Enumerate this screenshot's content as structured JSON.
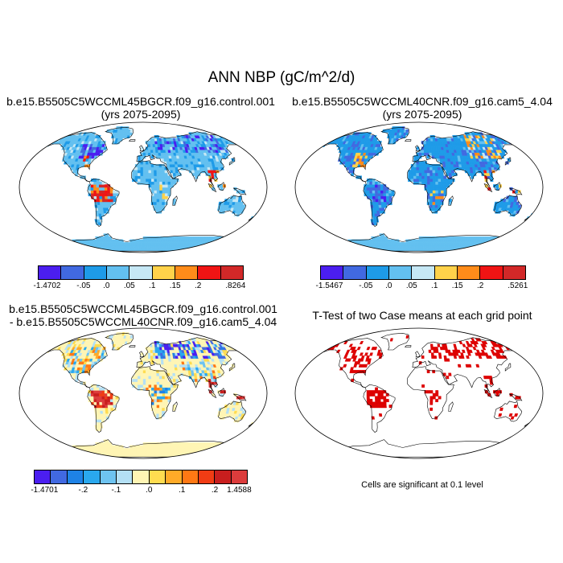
{
  "title": "ANN NBP (gC/m^2/d)",
  "panels": {
    "p1": {
      "line1": "b.e15.B5505C5WCCML45BGCR.f09_g16.control.001",
      "line2": "(yrs 2075-2095)"
    },
    "p2": {
      "line1": "b.e15.B5505C5WCCML40CNR.f09_g16.cam5_4.04",
      "line2": "(yrs 2075-2095)"
    },
    "p3": {
      "line1": "b.e15.B5505C5WCCML45BGCR.f09_g16.control.001",
      "line2": "- b.e15.B5505C5WCCML40CNR.f09_g16.cam5_4.04"
    },
    "p4": {
      "line1": "T-Test of two Case means at each grid point"
    }
  },
  "colorbars": {
    "cb1": {
      "colors": [
        "#4b1ef0",
        "#4169e1",
        "#1e9be8",
        "#63c0f0",
        "#c6e8f5",
        "#ffd24a",
        "#ff8c1a",
        "#f01414",
        "#d22828"
      ],
      "labels": [
        "-1.4702",
        "-.05",
        ".0",
        ".05",
        ".1",
        ".15",
        ".2",
        ".8264"
      ]
    },
    "cb2": {
      "colors": [
        "#4b1ef0",
        "#4169e1",
        "#1e9be8",
        "#63c0f0",
        "#c6e8f5",
        "#ffd24a",
        "#ff8c1a",
        "#f01414",
        "#d22828"
      ],
      "labels": [
        "-1.5467",
        "-.05",
        ".0",
        ".05",
        ".1",
        ".15",
        ".2",
        ".5261"
      ]
    },
    "cb3": {
      "colors": [
        "#4b1ef0",
        "#4169e1",
        "#1e82e6",
        "#2aa8ee",
        "#6ec3f0",
        "#b4e0f5",
        "#fff5b4",
        "#ffdc50",
        "#ffaa28",
        "#ff7814",
        "#f03c14",
        "#c81e1e",
        "#dc3c3c"
      ],
      "labels": [
        "-1.4701",
        "-.2",
        "-.1",
        ".0",
        ".1",
        ".2",
        "1.4588"
      ]
    }
  },
  "significance_note": "Cells are significant at 0.1 level",
  "map_colors": {
    "ocean": "#ffffff",
    "land_default_p1": "#63b4f0",
    "land_default_p3": "#fff5b4",
    "significant": "#dd0000",
    "outline": "#000000"
  }
}
